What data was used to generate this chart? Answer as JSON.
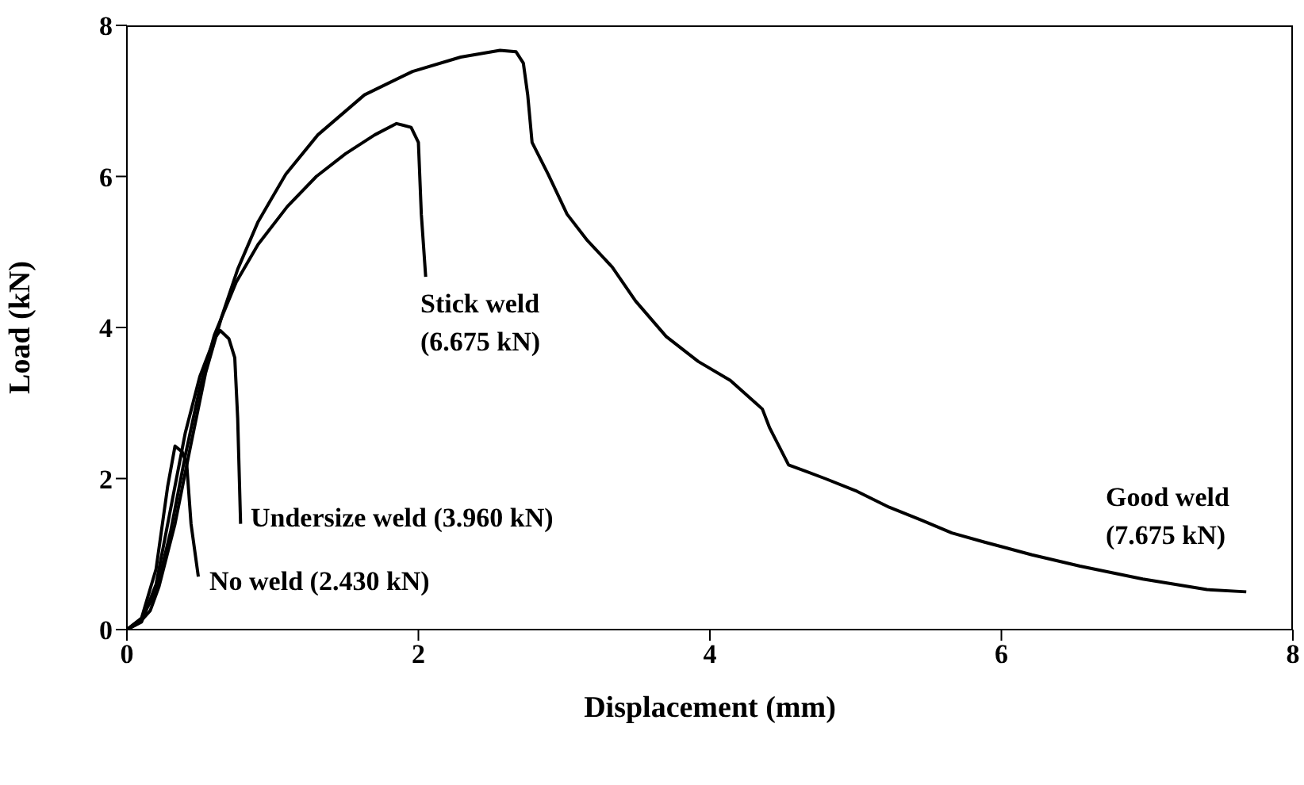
{
  "chart_data": {
    "type": "line",
    "xlabel": "Displacement (mm)",
    "ylabel": "Load (kN)",
    "xlim": [
      0,
      8
    ],
    "ylim": [
      0,
      8
    ],
    "xticks": [
      0,
      2,
      4,
      6,
      8
    ],
    "yticks": [
      0,
      2,
      4,
      6,
      8
    ],
    "grid": false,
    "legend": false,
    "marker": "none",
    "line_style": "solid",
    "series": [
      {
        "color": "#000000",
        "x": [
          0,
          0.09,
          0.16,
          0.22,
          0.33,
          0.44,
          0.54,
          0.65,
          0.76,
          0.9,
          1.09,
          1.31,
          1.63,
          1.96,
          2.29,
          2.56,
          2.67,
          2.72,
          2.75,
          2.78,
          2.89,
          3.02,
          3.16,
          3.33,
          3.49,
          3.7,
          3.92,
          4.14,
          4.36,
          4.41,
          4.54,
          4.79,
          5.01,
          5.23,
          5.45,
          5.66,
          5.88,
          6.21,
          6.54,
          6.97,
          7.41,
          7.68
        ],
        "values": [
          0,
          0.1,
          0.25,
          0.57,
          1.4,
          2.46,
          3.4,
          4.14,
          4.77,
          5.4,
          6.03,
          6.55,
          7.08,
          7.39,
          7.58,
          7.67,
          7.65,
          7.5,
          7.08,
          6.45,
          6.03,
          5.5,
          5.15,
          4.8,
          4.35,
          3.88,
          3.55,
          3.3,
          2.92,
          2.67,
          2.18,
          2.0,
          1.83,
          1.62,
          1.45,
          1.28,
          1.16,
          0.99,
          0.84,
          0.67,
          0.53,
          0.5
        ]
      },
      {
        "color": "#000000",
        "x": [
          0,
          0.1,
          0.2,
          0.3,
          0.4,
          0.5,
          0.6,
          0.75,
          0.9,
          1.1,
          1.3,
          1.5,
          1.7,
          1.85,
          1.95,
          2.0,
          2.02,
          2.05
        ],
        "values": [
          0,
          0.15,
          0.5,
          1.3,
          2.3,
          3.2,
          3.9,
          4.6,
          5.1,
          5.6,
          6.0,
          6.3,
          6.55,
          6.7,
          6.65,
          6.45,
          5.5,
          4.67
        ]
      },
      {
        "color": "#000000",
        "x": [
          0,
          0.1,
          0.2,
          0.3,
          0.4,
          0.5,
          0.6,
          0.64,
          0.7,
          0.74,
          0.76,
          0.78
        ],
        "values": [
          0,
          0.1,
          0.6,
          1.6,
          2.6,
          3.35,
          3.85,
          3.96,
          3.85,
          3.6,
          2.8,
          1.4
        ]
      },
      {
        "color": "#000000",
        "x": [
          0,
          0.1,
          0.2,
          0.28,
          0.33,
          0.38,
          0.41,
          0.44,
          0.49
        ],
        "values": [
          0,
          0.15,
          0.8,
          1.9,
          2.43,
          2.35,
          2.2,
          1.4,
          0.7
        ]
      }
    ],
    "annotations": [
      "Stick weld\n(6.675 kN)",
      "Undersize weld (3.960 kN)",
      "No weld (2.430 kN)",
      "Good weld\n(7.675 kN)"
    ]
  }
}
